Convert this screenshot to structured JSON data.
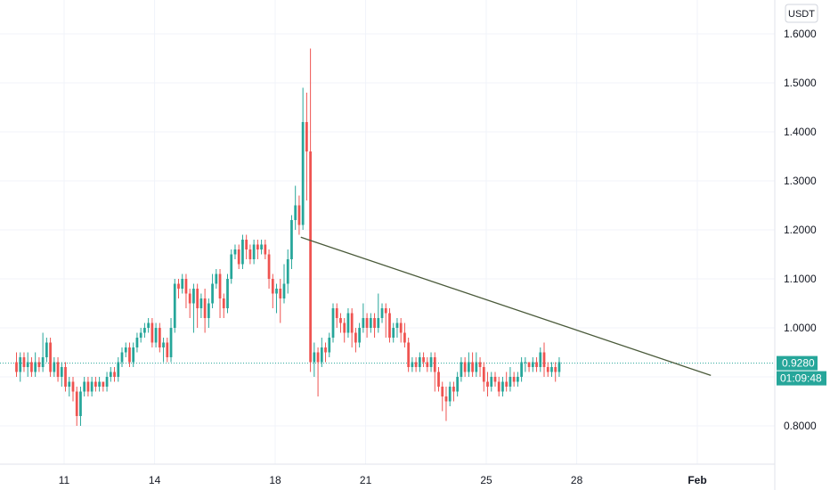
{
  "chart_data": {
    "type": "candlestick",
    "currency": "USDT",
    "y_range": [
      0.75,
      1.66
    ],
    "y_ticks": [
      "0.8000",
      "0.9000",
      "1.0000",
      "1.1000",
      "1.2000",
      "1.3000",
      "1.4000",
      "1.5000",
      "1.6000"
    ],
    "x_ticks": [
      {
        "label": "11",
        "day": 11
      },
      {
        "label": "14",
        "day": 14
      },
      {
        "label": "18",
        "day": 18
      },
      {
        "label": "21",
        "day": 21
      },
      {
        "label": "25",
        "day": 25
      },
      {
        "label": "28",
        "day": 28
      },
      {
        "label": "Feb",
        "day": 32
      }
    ],
    "last_price": "0.9280",
    "last_price_value": 0.928,
    "countdown": "01:09:48",
    "colors": {
      "up": "#26a69a",
      "down": "#ef5350",
      "trendline": "#4a5a3a",
      "price_line": "#26a69a",
      "grid": "#f0f3fa"
    },
    "trendline": [
      {
        "day": 18.85,
        "price": 1.185
      },
      {
        "day": 32.45,
        "price": 0.903
      }
    ],
    "bar_step_days": 0.125,
    "candles_start_day": 9.42,
    "candles": [
      [
        0.93,
        0.91,
        0.95,
        0.9
      ],
      [
        0.91,
        0.94,
        0.95,
        0.89
      ],
      [
        0.94,
        0.92,
        0.95,
        0.91
      ],
      [
        0.92,
        0.93,
        0.95,
        0.9
      ],
      [
        0.93,
        0.91,
        0.94,
        0.9
      ],
      [
        0.91,
        0.93,
        0.95,
        0.9
      ],
      [
        0.93,
        0.92,
        0.94,
        0.91
      ],
      [
        0.92,
        0.94,
        0.99,
        0.91
      ],
      [
        0.94,
        0.97,
        0.98,
        0.93
      ],
      [
        0.97,
        0.91,
        0.98,
        0.9
      ],
      [
        0.91,
        0.93,
        0.94,
        0.9
      ],
      [
        0.93,
        0.9,
        0.94,
        0.89
      ],
      [
        0.9,
        0.92,
        0.93,
        0.88
      ],
      [
        0.92,
        0.88,
        0.93,
        0.87
      ],
      [
        0.88,
        0.89,
        0.9,
        0.86
      ],
      [
        0.89,
        0.87,
        0.9,
        0.85
      ],
      [
        0.87,
        0.82,
        0.88,
        0.8
      ],
      [
        0.82,
        0.87,
        0.88,
        0.8
      ],
      [
        0.87,
        0.89,
        0.9,
        0.86
      ],
      [
        0.89,
        0.87,
        0.9,
        0.86
      ],
      [
        0.87,
        0.89,
        0.9,
        0.86
      ],
      [
        0.89,
        0.88,
        0.9,
        0.87
      ],
      [
        0.88,
        0.89,
        0.9,
        0.87
      ],
      [
        0.89,
        0.88,
        0.89,
        0.87
      ],
      [
        0.88,
        0.9,
        0.91,
        0.87
      ],
      [
        0.9,
        0.91,
        0.92,
        0.89
      ],
      [
        0.91,
        0.9,
        0.92,
        0.89
      ],
      [
        0.9,
        0.93,
        0.94,
        0.89
      ],
      [
        0.93,
        0.95,
        0.96,
        0.92
      ],
      [
        0.95,
        0.96,
        0.97,
        0.94
      ],
      [
        0.96,
        0.93,
        0.97,
        0.92
      ],
      [
        0.93,
        0.96,
        0.97,
        0.92
      ],
      [
        0.96,
        0.98,
        0.99,
        0.95
      ],
      [
        0.98,
        0.99,
        1.0,
        0.97
      ],
      [
        0.99,
        1.0,
        1.01,
        0.98
      ],
      [
        1.0,
        1.01,
        1.02,
        0.99
      ],
      [
        1.01,
        0.97,
        1.02,
        0.96
      ],
      [
        0.97,
        1.0,
        1.01,
        0.96
      ],
      [
        1.0,
        0.96,
        1.01,
        0.95
      ],
      [
        0.96,
        0.97,
        0.98,
        0.93
      ],
      [
        0.97,
        0.94,
        0.98,
        0.93
      ],
      [
        0.94,
        1.0,
        1.02,
        0.93
      ],
      [
        1.0,
        1.09,
        1.1,
        0.99
      ],
      [
        1.09,
        1.08,
        1.1,
        1.06
      ],
      [
        1.08,
        1.1,
        1.11,
        1.07
      ],
      [
        1.1,
        1.07,
        1.11,
        1.04
      ],
      [
        1.07,
        1.05,
        1.08,
        1.02
      ],
      [
        1.05,
        1.08,
        1.09,
        0.99
      ],
      [
        1.08,
        1.04,
        1.09,
        1.0
      ],
      [
        1.04,
        1.06,
        1.07,
        1.02
      ],
      [
        1.06,
        1.02,
        1.08,
        0.99
      ],
      [
        1.02,
        1.05,
        1.06,
        1.0
      ],
      [
        1.05,
        1.09,
        1.11,
        1.04
      ],
      [
        1.09,
        1.11,
        1.12,
        1.08
      ],
      [
        1.11,
        1.06,
        1.12,
        1.02
      ],
      [
        1.06,
        1.04,
        1.07,
        1.02
      ],
      [
        1.04,
        1.1,
        1.11,
        1.03
      ],
      [
        1.1,
        1.15,
        1.16,
        1.09
      ],
      [
        1.15,
        1.16,
        1.17,
        1.14
      ],
      [
        1.16,
        1.13,
        1.17,
        1.12
      ],
      [
        1.13,
        1.18,
        1.19,
        1.12
      ],
      [
        1.18,
        1.16,
        1.19,
        1.14
      ],
      [
        1.16,
        1.14,
        1.17,
        1.13
      ],
      [
        1.14,
        1.17,
        1.18,
        1.13
      ],
      [
        1.17,
        1.16,
        1.18,
        1.14
      ],
      [
        1.16,
        1.17,
        1.18,
        1.15
      ],
      [
        1.17,
        1.15,
        1.18,
        1.14
      ],
      [
        1.15,
        1.1,
        1.16,
        1.08
      ],
      [
        1.1,
        1.07,
        1.11,
        1.04
      ],
      [
        1.07,
        1.08,
        1.09,
        1.03
      ],
      [
        1.08,
        1.06,
        1.1,
        1.01
      ],
      [
        1.06,
        1.09,
        1.13,
        1.05
      ],
      [
        1.09,
        1.14,
        1.16,
        1.07
      ],
      [
        1.14,
        1.22,
        1.23,
        1.12
      ],
      [
        1.22,
        1.25,
        1.29,
        1.2
      ],
      [
        1.25,
        1.21,
        1.27,
        1.19
      ],
      [
        1.21,
        1.42,
        1.49,
        1.2
      ],
      [
        1.42,
        1.36,
        1.48,
        1.26
      ],
      [
        1.36,
        0.93,
        1.57,
        0.91
      ],
      [
        0.93,
        0.95,
        0.97,
        0.9
      ],
      [
        0.95,
        0.93,
        0.96,
        0.86
      ],
      [
        0.93,
        0.96,
        0.98,
        0.92
      ],
      [
        0.96,
        0.95,
        0.97,
        0.93
      ],
      [
        0.95,
        0.98,
        0.99,
        0.94
      ],
      [
        0.98,
        1.04,
        1.05,
        0.97
      ],
      [
        1.04,
        1.02,
        1.05,
        1.0
      ],
      [
        1.02,
        1.01,
        1.03,
        0.99
      ],
      [
        1.01,
        0.99,
        1.02,
        0.97
      ],
      [
        0.99,
        1.03,
        1.04,
        0.98
      ],
      [
        1.03,
        0.99,
        1.04,
        0.96
      ],
      [
        0.99,
        0.97,
        1.0,
        0.95
      ],
      [
        0.97,
        1.0,
        1.01,
        0.96
      ],
      [
        1.0,
        1.02,
        1.05,
        0.99
      ],
      [
        1.02,
        1.0,
        1.03,
        0.98
      ],
      [
        1.0,
        1.02,
        1.03,
        0.99
      ],
      [
        1.02,
        1.0,
        1.03,
        0.98
      ],
      [
        1.0,
        1.02,
        1.07,
        0.99
      ],
      [
        1.02,
        1.04,
        1.05,
        1.01
      ],
      [
        1.04,
        1.03,
        1.05,
        0.98
      ],
      [
        1.03,
        0.98,
        1.04,
        0.97
      ],
      [
        0.98,
        1.0,
        1.01,
        0.97
      ],
      [
        1.0,
        1.01,
        1.02,
        0.98
      ],
      [
        1.01,
        0.99,
        1.02,
        0.97
      ],
      [
        0.99,
        0.97,
        1.01,
        0.96
      ],
      [
        0.97,
        0.92,
        0.98,
        0.91
      ],
      [
        0.92,
        0.93,
        0.94,
        0.91
      ],
      [
        0.93,
        0.92,
        0.94,
        0.91
      ],
      [
        0.92,
        0.94,
        0.95,
        0.91
      ],
      [
        0.94,
        0.93,
        0.95,
        0.92
      ],
      [
        0.93,
        0.92,
        0.94,
        0.91
      ],
      [
        0.92,
        0.94,
        0.95,
        0.91
      ],
      [
        0.94,
        0.91,
        0.95,
        0.87
      ],
      [
        0.91,
        0.88,
        0.92,
        0.87
      ],
      [
        0.88,
        0.86,
        0.89,
        0.83
      ],
      [
        0.86,
        0.85,
        0.88,
        0.81
      ],
      [
        0.85,
        0.88,
        0.89,
        0.84
      ],
      [
        0.88,
        0.87,
        0.89,
        0.85
      ],
      [
        0.87,
        0.9,
        0.91,
        0.86
      ],
      [
        0.9,
        0.93,
        0.94,
        0.89
      ],
      [
        0.93,
        0.91,
        0.94,
        0.9
      ],
      [
        0.91,
        0.93,
        0.95,
        0.9
      ],
      [
        0.93,
        0.91,
        0.95,
        0.9
      ],
      [
        0.91,
        0.93,
        0.95,
        0.9
      ],
      [
        0.93,
        0.92,
        0.94,
        0.9
      ],
      [
        0.92,
        0.89,
        0.93,
        0.87
      ],
      [
        0.89,
        0.88,
        0.91,
        0.86
      ],
      [
        0.88,
        0.9,
        0.91,
        0.87
      ],
      [
        0.9,
        0.89,
        0.91,
        0.88
      ],
      [
        0.89,
        0.87,
        0.9,
        0.86
      ],
      [
        0.87,
        0.89,
        0.9,
        0.86
      ],
      [
        0.89,
        0.88,
        0.91,
        0.87
      ],
      [
        0.88,
        0.9,
        0.92,
        0.87
      ],
      [
        0.9,
        0.89,
        0.91,
        0.88
      ],
      [
        0.89,
        0.9,
        0.91,
        0.88
      ],
      [
        0.9,
        0.93,
        0.94,
        0.89
      ],
      [
        0.93,
        0.93,
        0.94,
        0.91
      ],
      [
        0.93,
        0.92,
        0.93,
        0.91
      ],
      [
        0.92,
        0.93,
        0.94,
        0.91
      ],
      [
        0.93,
        0.92,
        0.94,
        0.91
      ],
      [
        0.92,
        0.95,
        0.96,
        0.91
      ],
      [
        0.95,
        0.92,
        0.97,
        0.9
      ],
      [
        0.92,
        0.91,
        0.93,
        0.9
      ],
      [
        0.91,
        0.92,
        0.93,
        0.9
      ],
      [
        0.92,
        0.91,
        0.93,
        0.89
      ],
      [
        0.91,
        0.93,
        0.94,
        0.9
      ]
    ]
  }
}
